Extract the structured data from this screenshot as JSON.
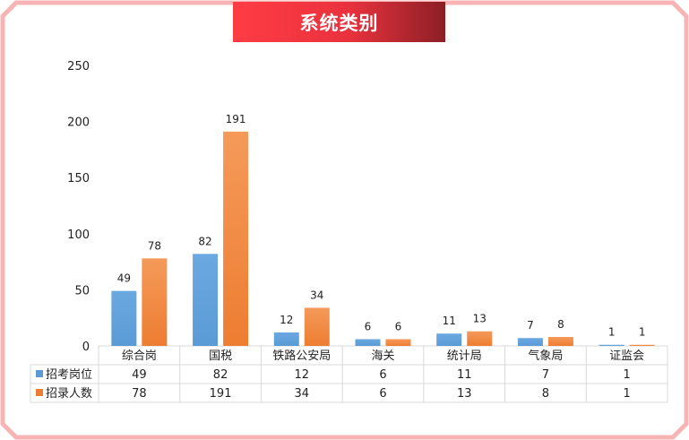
{
  "title": "系统类别",
  "colors": {
    "series1": "#5b9bd5",
    "series2": "#ed7d31",
    "frame": "#f6a6a6",
    "banner": "#ff3c44"
  },
  "chart_data": {
    "type": "bar",
    "categories": [
      "综合岗",
      "国税",
      "铁路公安局",
      "海关",
      "统计局",
      "气象局",
      "证监会"
    ],
    "series": [
      {
        "name": "招考岗位",
        "values": [
          49,
          82,
          12,
          6,
          11,
          7,
          1
        ]
      },
      {
        "name": "招录人数",
        "values": [
          78,
          191,
          34,
          6,
          13,
          8,
          1
        ]
      }
    ],
    "ylim": [
      0,
      250
    ],
    "yticks": [
      0,
      50,
      100,
      150,
      200,
      250
    ],
    "data_table": true,
    "grid": false
  }
}
